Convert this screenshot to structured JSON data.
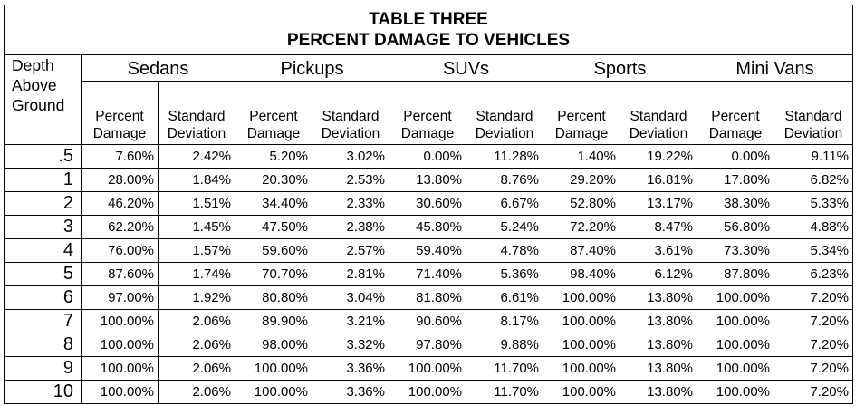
{
  "title": "TABLE THREE",
  "subtitle": "PERCENT DAMAGE TO VEHICLES",
  "depth_header": "Depth Above Ground",
  "depth_header_lines": [
    "Depth",
    "Above",
    "Ground"
  ],
  "groups": [
    "Sedans",
    "Pickups",
    "SUVs",
    "Sports",
    "Mini Vans"
  ],
  "sub_headers": [
    [
      "Percent",
      "Damage"
    ],
    [
      "Standard",
      "Deviation"
    ],
    [
      "Percent",
      "Damage"
    ],
    [
      "Standard",
      "Deviation"
    ],
    [
      "Percent",
      "Damage"
    ],
    [
      "Standard",
      "Deviation"
    ],
    [
      "Percent",
      "Damage"
    ],
    [
      "Standard",
      "Deviation"
    ],
    [
      "Percent",
      "Damage"
    ],
    [
      "Standard",
      "Deviation"
    ]
  ],
  "rows": [
    {
      "depth": ".5",
      "values": [
        "7.60%",
        "2.42%",
        "5.20%",
        "3.02%",
        "0.00%",
        "11.28%",
        "1.40%",
        "19.22%",
        "0.00%",
        "9.11%"
      ]
    },
    {
      "depth": "1",
      "values": [
        "28.00%",
        "1.84%",
        "20.30%",
        "2.53%",
        "13.80%",
        "8.76%",
        "29.20%",
        "16.81%",
        "17.80%",
        "6.82%"
      ]
    },
    {
      "depth": "2",
      "values": [
        "46.20%",
        "1.51%",
        "34.40%",
        "2.33%",
        "30.60%",
        "6.67%",
        "52.80%",
        "13.17%",
        "38.30%",
        "5.33%"
      ]
    },
    {
      "depth": "3",
      "values": [
        "62.20%",
        "1.45%",
        "47.50%",
        "2.38%",
        "45.80%",
        "5.24%",
        "72.20%",
        "8.47%",
        "56.80%",
        "4.88%"
      ]
    },
    {
      "depth": "4",
      "values": [
        "76.00%",
        "1.57%",
        "59.60%",
        "2.57%",
        "59.40%",
        "4.78%",
        "87.40%",
        "3.61%",
        "73.30%",
        "5.34%"
      ]
    },
    {
      "depth": "5",
      "values": [
        "87.60%",
        "1.74%",
        "70.70%",
        "2.81%",
        "71.40%",
        "5.36%",
        "98.40%",
        "6.12%",
        "87.80%",
        "6.23%"
      ]
    },
    {
      "depth": "6",
      "values": [
        "97.00%",
        "1.92%",
        "80.80%",
        "3.04%",
        "81.80%",
        "6.61%",
        "100.00%",
        "13.80%",
        "100.00%",
        "7.20%"
      ]
    },
    {
      "depth": "7",
      "values": [
        "100.00%",
        "2.06%",
        "89.90%",
        "3.21%",
        "90.60%",
        "8.17%",
        "100.00%",
        "13.80%",
        "100.00%",
        "7.20%"
      ]
    },
    {
      "depth": "8",
      "values": [
        "100.00%",
        "2.06%",
        "98.00%",
        "3.32%",
        "97.80%",
        "9.88%",
        "100.00%",
        "13.80%",
        "100.00%",
        "7.20%"
      ]
    },
    {
      "depth": "9",
      "values": [
        "100.00%",
        "2.06%",
        "100.00%",
        "3.36%",
        "100.00%",
        "11.70%",
        "100.00%",
        "13.80%",
        "100.00%",
        "7.20%"
      ]
    },
    {
      "depth": "10",
      "values": [
        "100.00%",
        "2.06%",
        "100.00%",
        "3.36%",
        "100.00%",
        "11.70%",
        "100.00%",
        "13.80%",
        "100.00%",
        "7.20%"
      ]
    }
  ]
}
